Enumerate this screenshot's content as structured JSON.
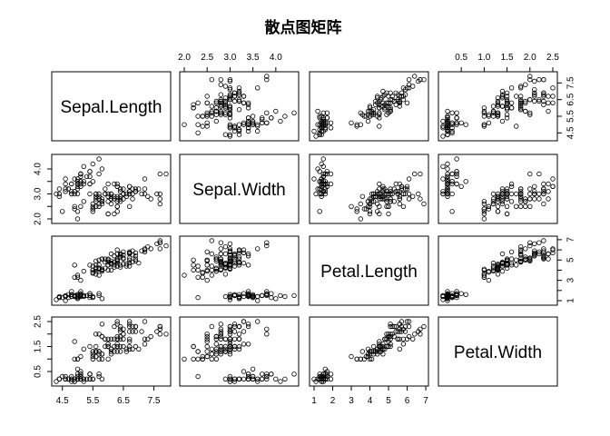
{
  "chart_data": {
    "type": "scatter",
    "title": "散点图矩阵",
    "variables": [
      "Sepal.Length",
      "Sepal.Width",
      "Petal.Length",
      "Petal.Width"
    ],
    "axis_ranges": [
      [
        4.3,
        7.9
      ],
      [
        2.0,
        4.4
      ],
      [
        1.0,
        6.9
      ],
      [
        0.1,
        2.5
      ]
    ],
    "axis_ticks": [
      {
        "values": [
          4.5,
          5.5,
          6.5,
          7.5
        ],
        "labels": [
          "4.5",
          "5.5",
          "6.5",
          "7.5"
        ],
        "side": "bottom"
      },
      {
        "values": [
          2.0,
          2.5,
          3.0,
          3.5,
          4.0
        ],
        "labels": [
          "2.0",
          "2.5",
          "3.0",
          "3.5",
          "4.0"
        ],
        "side": "top"
      },
      {
        "values": [
          1,
          2,
          3,
          4,
          5,
          6,
          7
        ],
        "labels": [
          "1",
          "2",
          "3",
          "4",
          "5",
          "6",
          "7"
        ],
        "side": "bottom"
      },
      {
        "values": [
          0.5,
          1.0,
          1.5,
          2.0,
          2.5
        ],
        "labels": [
          "0.5",
          "1.0",
          "1.5",
          "2.0",
          "2.5"
        ],
        "side": "top"
      }
    ],
    "row_ticks": [
      {
        "values": [
          4.5,
          5.5,
          6.5,
          7.5
        ],
        "labels": [
          "4.5",
          "5.5",
          "6.5",
          "7.5"
        ],
        "side": "right"
      },
      {
        "values": [
          2.0,
          2.5,
          3.0,
          3.5,
          4.0
        ],
        "labels": [
          "2.0",
          "",
          "3.0",
          "",
          "4.0"
        ],
        "side": "left"
      },
      {
        "values": [
          1,
          2,
          3,
          4,
          5,
          6,
          7
        ],
        "labels": [
          "1",
          "",
          "3",
          "",
          "5",
          "",
          "7"
        ],
        "side": "right"
      },
      {
        "values": [
          0.5,
          1.0,
          1.5,
          2.0,
          2.5
        ],
        "labels": [
          "0.5",
          "",
          "1.5",
          "",
          "2.5"
        ],
        "side": "left"
      }
    ],
    "data": [
      [
        5.1,
        3.5,
        1.4,
        0.2
      ],
      [
        4.9,
        3.0,
        1.4,
        0.2
      ],
      [
        4.7,
        3.2,
        1.3,
        0.2
      ],
      [
        4.6,
        3.1,
        1.5,
        0.2
      ],
      [
        5.0,
        3.6,
        1.4,
        0.2
      ],
      [
        5.4,
        3.9,
        1.7,
        0.4
      ],
      [
        4.6,
        3.4,
        1.4,
        0.3
      ],
      [
        5.0,
        3.4,
        1.5,
        0.2
      ],
      [
        4.4,
        2.9,
        1.4,
        0.2
      ],
      [
        4.9,
        3.1,
        1.5,
        0.1
      ],
      [
        5.4,
        3.7,
        1.5,
        0.2
      ],
      [
        4.8,
        3.4,
        1.6,
        0.2
      ],
      [
        4.8,
        3.0,
        1.4,
        0.1
      ],
      [
        4.3,
        3.0,
        1.1,
        0.1
      ],
      [
        5.8,
        4.0,
        1.2,
        0.2
      ],
      [
        5.7,
        4.4,
        1.5,
        0.4
      ],
      [
        5.4,
        3.9,
        1.3,
        0.4
      ],
      [
        5.1,
        3.5,
        1.4,
        0.3
      ],
      [
        5.7,
        3.8,
        1.7,
        0.3
      ],
      [
        5.1,
        3.8,
        1.5,
        0.3
      ],
      [
        5.4,
        3.4,
        1.7,
        0.2
      ],
      [
        5.1,
        3.7,
        1.5,
        0.4
      ],
      [
        4.6,
        3.6,
        1.0,
        0.2
      ],
      [
        5.1,
        3.3,
        1.7,
        0.5
      ],
      [
        4.8,
        3.4,
        1.9,
        0.2
      ],
      [
        5.0,
        3.0,
        1.6,
        0.2
      ],
      [
        5.0,
        3.4,
        1.6,
        0.4
      ],
      [
        5.2,
        3.5,
        1.5,
        0.2
      ],
      [
        5.2,
        3.4,
        1.4,
        0.2
      ],
      [
        4.7,
        3.2,
        1.6,
        0.2
      ],
      [
        4.8,
        3.1,
        1.6,
        0.2
      ],
      [
        5.4,
        3.4,
        1.5,
        0.4
      ],
      [
        5.2,
        4.1,
        1.5,
        0.1
      ],
      [
        5.5,
        4.2,
        1.4,
        0.2
      ],
      [
        4.9,
        3.1,
        1.5,
        0.2
      ],
      [
        5.0,
        3.2,
        1.2,
        0.2
      ],
      [
        5.5,
        3.5,
        1.3,
        0.2
      ],
      [
        4.9,
        3.6,
        1.4,
        0.1
      ],
      [
        4.4,
        3.0,
        1.3,
        0.2
      ],
      [
        5.1,
        3.4,
        1.5,
        0.2
      ],
      [
        5.0,
        3.5,
        1.3,
        0.3
      ],
      [
        4.5,
        2.3,
        1.3,
        0.3
      ],
      [
        4.4,
        3.2,
        1.3,
        0.2
      ],
      [
        5.0,
        3.5,
        1.6,
        0.6
      ],
      [
        5.1,
        3.8,
        1.9,
        0.4
      ],
      [
        4.8,
        3.0,
        1.4,
        0.3
      ],
      [
        5.1,
        3.8,
        1.6,
        0.2
      ],
      [
        4.6,
        3.2,
        1.4,
        0.2
      ],
      [
        5.3,
        3.7,
        1.5,
        0.2
      ],
      [
        5.0,
        3.3,
        1.4,
        0.2
      ],
      [
        7.0,
        3.2,
        4.7,
        1.4
      ],
      [
        6.4,
        3.2,
        4.5,
        1.5
      ],
      [
        6.9,
        3.1,
        4.9,
        1.5
      ],
      [
        5.5,
        2.3,
        4.0,
        1.3
      ],
      [
        6.5,
        2.8,
        4.6,
        1.5
      ],
      [
        5.7,
        2.8,
        4.5,
        1.3
      ],
      [
        6.3,
        3.3,
        4.7,
        1.6
      ],
      [
        4.9,
        2.4,
        3.3,
        1.0
      ],
      [
        6.6,
        2.9,
        4.6,
        1.3
      ],
      [
        5.2,
        2.7,
        3.9,
        1.4
      ],
      [
        5.0,
        2.0,
        3.5,
        1.0
      ],
      [
        5.9,
        3.0,
        4.2,
        1.5
      ],
      [
        6.0,
        2.2,
        4.0,
        1.0
      ],
      [
        6.1,
        2.9,
        4.7,
        1.4
      ],
      [
        5.6,
        2.9,
        3.6,
        1.3
      ],
      [
        6.7,
        3.1,
        4.4,
        1.4
      ],
      [
        5.6,
        3.0,
        4.5,
        1.5
      ],
      [
        5.8,
        2.7,
        4.1,
        1.0
      ],
      [
        6.2,
        2.2,
        4.5,
        1.5
      ],
      [
        5.6,
        2.5,
        3.9,
        1.1
      ],
      [
        5.9,
        3.2,
        4.8,
        1.8
      ],
      [
        6.1,
        2.8,
        4.0,
        1.3
      ],
      [
        6.3,
        2.5,
        4.9,
        1.5
      ],
      [
        6.1,
        2.8,
        4.7,
        1.2
      ],
      [
        6.4,
        2.9,
        4.3,
        1.3
      ],
      [
        6.6,
        3.0,
        4.4,
        1.4
      ],
      [
        6.8,
        2.8,
        4.8,
        1.4
      ],
      [
        6.7,
        3.0,
        5.0,
        1.7
      ],
      [
        6.0,
        2.9,
        4.5,
        1.5
      ],
      [
        5.7,
        2.6,
        3.5,
        1.0
      ],
      [
        5.5,
        2.4,
        3.8,
        1.1
      ],
      [
        5.5,
        2.4,
        3.7,
        1.0
      ],
      [
        5.8,
        2.7,
        3.9,
        1.2
      ],
      [
        6.0,
        2.7,
        5.1,
        1.6
      ],
      [
        5.4,
        3.0,
        4.5,
        1.5
      ],
      [
        6.0,
        3.4,
        4.5,
        1.6
      ],
      [
        6.7,
        3.1,
        4.7,
        1.5
      ],
      [
        6.3,
        2.3,
        4.4,
        1.3
      ],
      [
        5.6,
        3.0,
        4.1,
        1.3
      ],
      [
        5.5,
        2.5,
        4.0,
        1.3
      ],
      [
        5.5,
        2.6,
        4.4,
        1.2
      ],
      [
        6.1,
        3.0,
        4.6,
        1.4
      ],
      [
        5.8,
        2.6,
        4.0,
        1.2
      ],
      [
        5.0,
        2.3,
        3.3,
        1.0
      ],
      [
        5.6,
        2.7,
        4.2,
        1.3
      ],
      [
        5.7,
        3.0,
        4.2,
        1.2
      ],
      [
        5.7,
        2.9,
        4.2,
        1.3
      ],
      [
        6.2,
        2.9,
        4.3,
        1.3
      ],
      [
        5.1,
        2.5,
        3.0,
        1.1
      ],
      [
        5.7,
        2.8,
        4.1,
        1.3
      ],
      [
        6.3,
        3.3,
        6.0,
        2.5
      ],
      [
        5.8,
        2.7,
        5.1,
        1.9
      ],
      [
        7.1,
        3.0,
        5.9,
        2.1
      ],
      [
        6.3,
        2.9,
        5.6,
        1.8
      ],
      [
        6.5,
        3.0,
        5.8,
        2.2
      ],
      [
        7.6,
        3.0,
        6.6,
        2.1
      ],
      [
        4.9,
        2.5,
        4.5,
        1.7
      ],
      [
        7.3,
        2.9,
        6.3,
        1.8
      ],
      [
        6.7,
        2.5,
        5.8,
        1.8
      ],
      [
        7.2,
        3.6,
        6.1,
        2.5
      ],
      [
        6.5,
        3.2,
        5.1,
        2.0
      ],
      [
        6.4,
        2.7,
        5.3,
        1.9
      ],
      [
        6.8,
        3.0,
        5.5,
        2.1
      ],
      [
        5.7,
        2.5,
        5.0,
        2.0
      ],
      [
        5.8,
        2.8,
        5.1,
        2.4
      ],
      [
        6.4,
        3.2,
        5.3,
        2.3
      ],
      [
        6.5,
        3.0,
        5.5,
        1.8
      ],
      [
        7.7,
        3.8,
        6.7,
        2.2
      ],
      [
        7.7,
        2.6,
        6.9,
        2.3
      ],
      [
        6.0,
        2.2,
        5.0,
        1.5
      ],
      [
        6.9,
        3.2,
        5.7,
        2.3
      ],
      [
        5.6,
        2.8,
        4.9,
        2.0
      ],
      [
        7.7,
        2.8,
        6.7,
        2.0
      ],
      [
        6.3,
        2.7,
        4.9,
        1.8
      ],
      [
        6.7,
        3.3,
        5.7,
        2.1
      ],
      [
        7.2,
        3.2,
        6.0,
        1.8
      ],
      [
        6.2,
        2.8,
        4.8,
        1.8
      ],
      [
        6.1,
        3.0,
        4.9,
        1.8
      ],
      [
        6.4,
        2.8,
        5.6,
        2.1
      ],
      [
        7.2,
        3.0,
        5.8,
        1.6
      ],
      [
        7.4,
        2.8,
        6.1,
        1.9
      ],
      [
        7.9,
        3.8,
        6.4,
        2.0
      ],
      [
        6.4,
        2.8,
        5.6,
        2.2
      ],
      [
        6.3,
        2.8,
        5.1,
        1.5
      ],
      [
        6.1,
        2.6,
        5.6,
        1.4
      ],
      [
        7.7,
        3.0,
        6.1,
        2.3
      ],
      [
        6.3,
        3.4,
        5.6,
        2.4
      ],
      [
        6.4,
        3.1,
        5.5,
        1.8
      ],
      [
        6.0,
        3.0,
        4.8,
        1.8
      ],
      [
        6.9,
        3.1,
        5.4,
        2.1
      ],
      [
        6.7,
        3.1,
        5.6,
        2.4
      ],
      [
        6.9,
        3.1,
        5.1,
        2.3
      ],
      [
        5.8,
        2.7,
        5.1,
        1.9
      ],
      [
        6.8,
        3.2,
        5.9,
        2.3
      ],
      [
        6.7,
        3.3,
        5.7,
        2.5
      ],
      [
        6.7,
        3.0,
        5.2,
        2.3
      ],
      [
        6.3,
        2.5,
        5.0,
        1.9
      ],
      [
        6.5,
        3.0,
        5.2,
        2.0
      ],
      [
        6.2,
        3.4,
        5.4,
        2.3
      ],
      [
        5.9,
        3.0,
        5.1,
        1.8
      ]
    ]
  }
}
